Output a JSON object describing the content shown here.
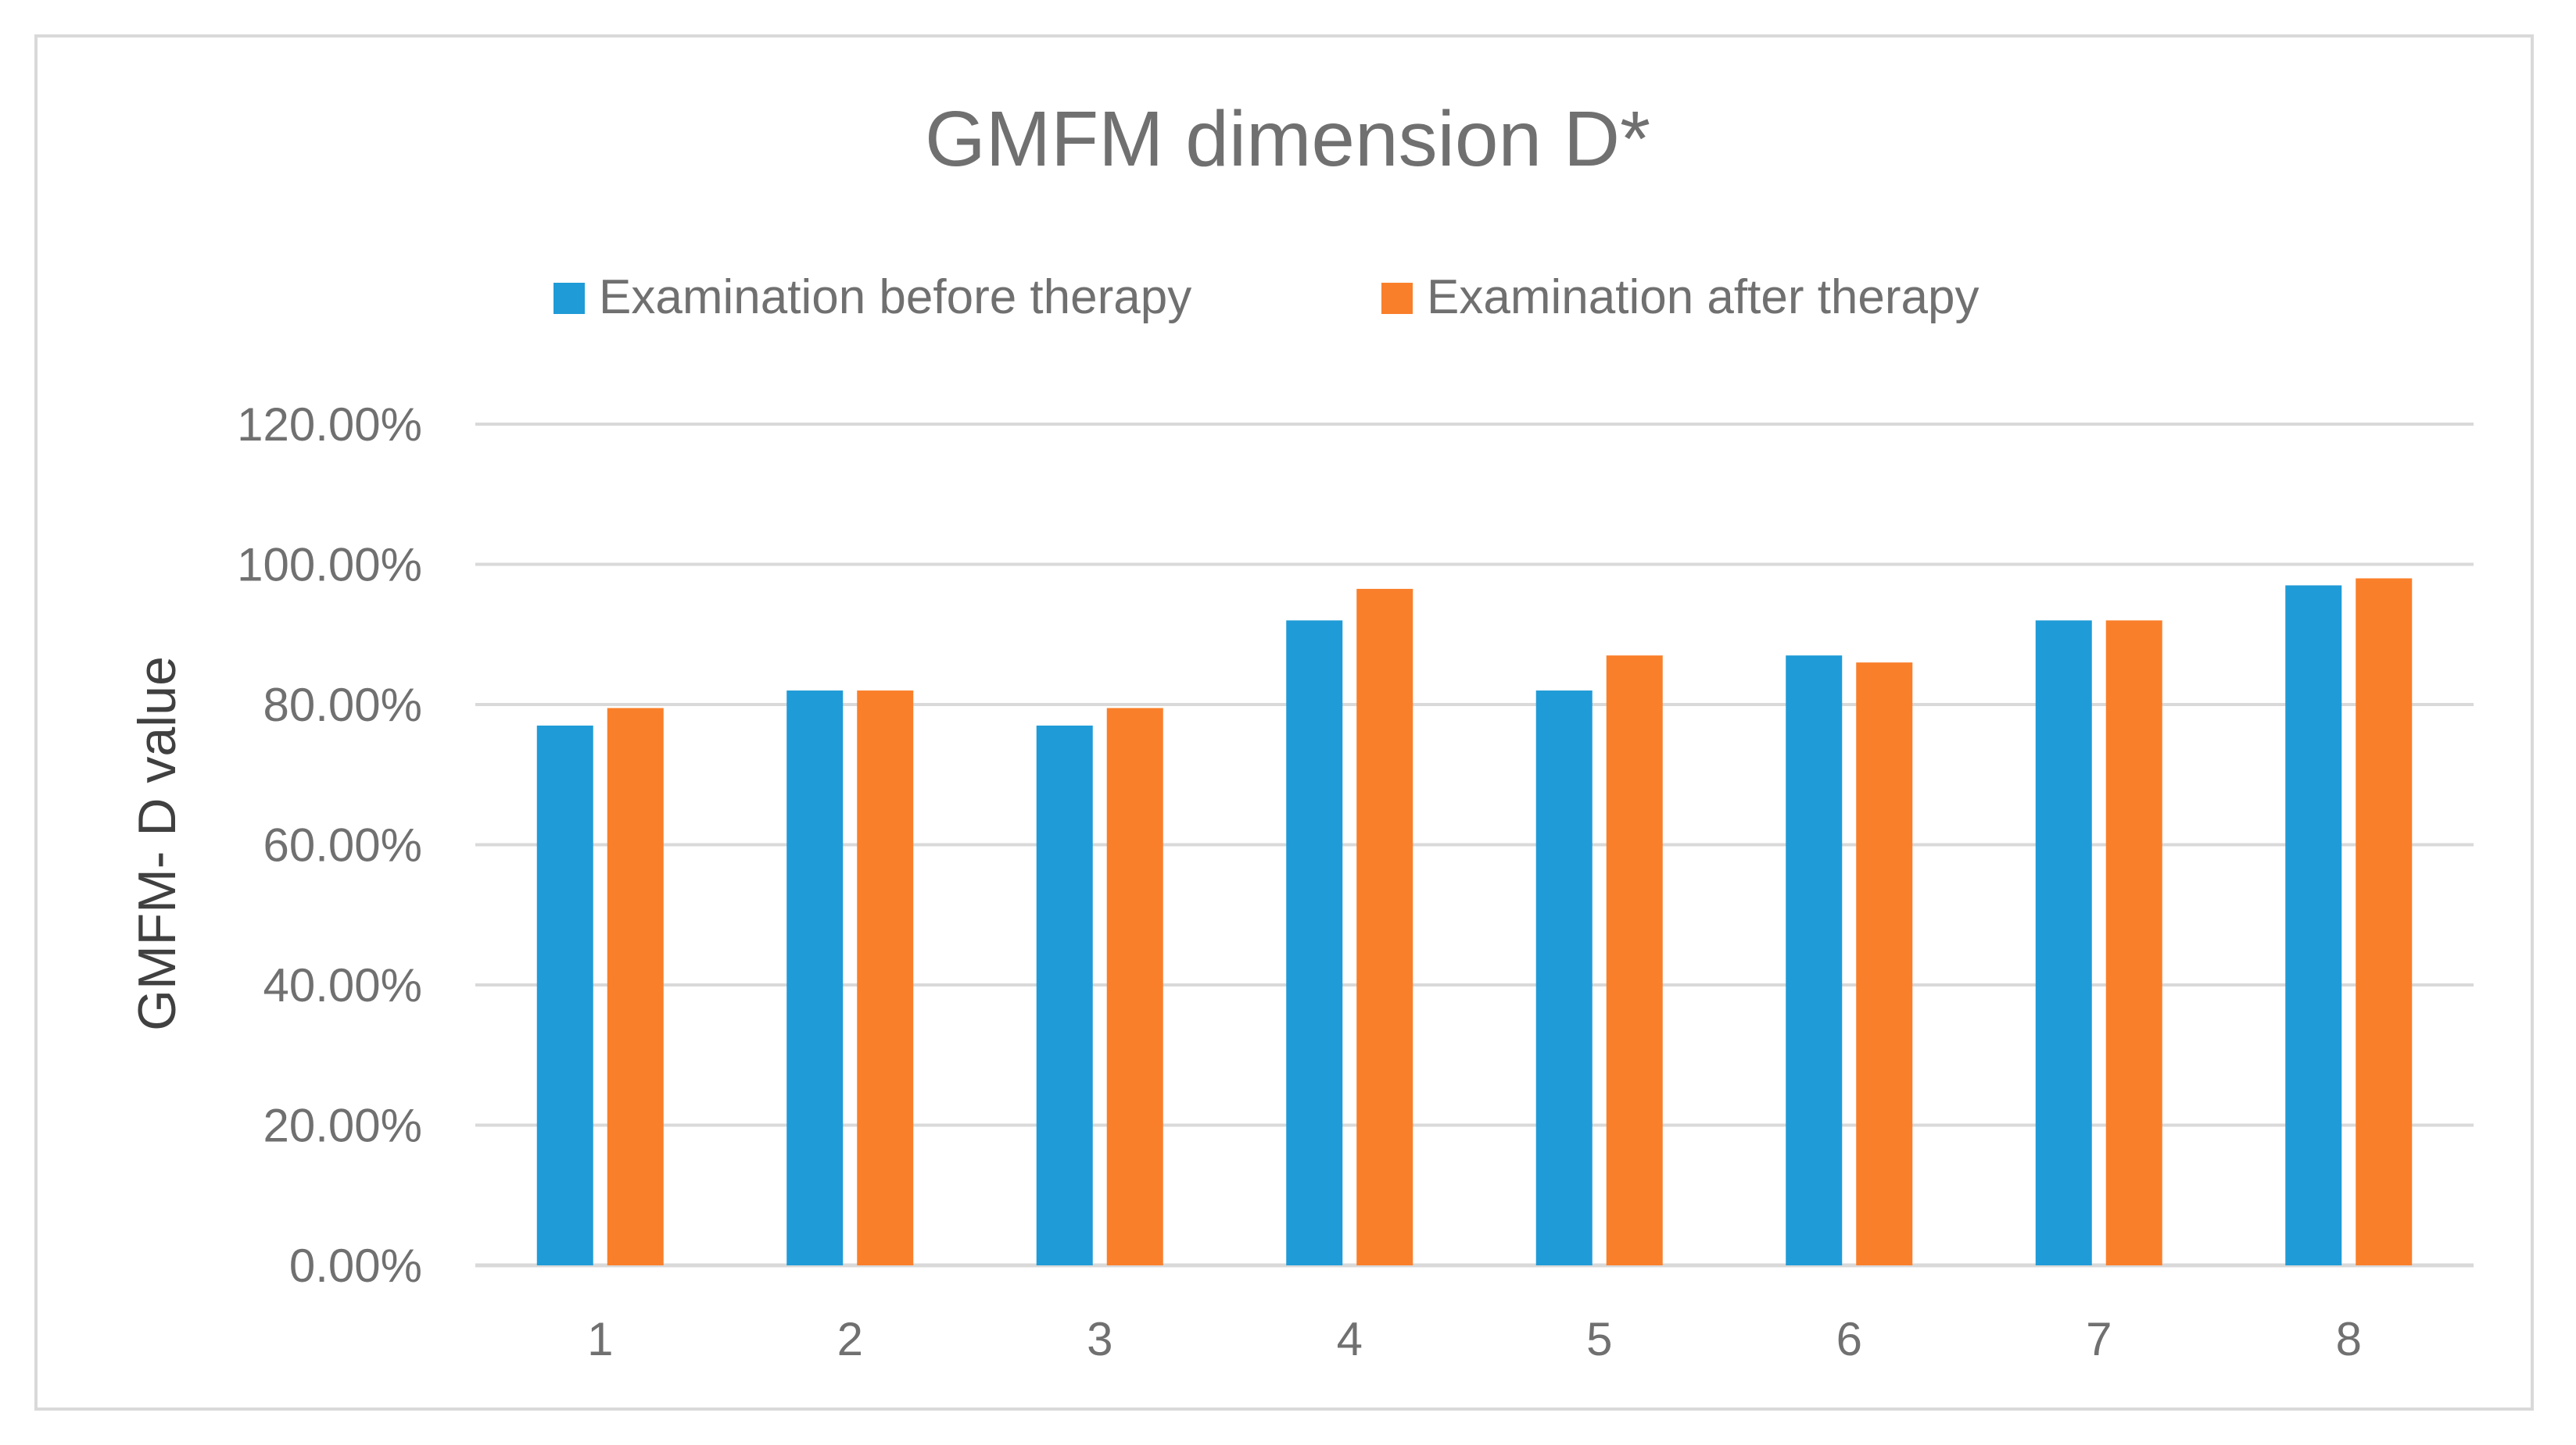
{
  "chart_data": {
    "type": "bar",
    "title": "GMFM dimension D*",
    "xlabel": "",
    "ylabel": "GMFM- D  value",
    "categories": [
      "1",
      "2",
      "3",
      "4",
      "5",
      "6",
      "7",
      "8"
    ],
    "series": [
      {
        "name": "Examination before therapy",
        "color": "#1f9bd7",
        "values": [
          0.77,
          0.82,
          0.77,
          0.92,
          0.82,
          0.87,
          0.92,
          0.97
        ]
      },
      {
        "name": "Examination after therapy",
        "color": "#fa7f2a",
        "values": [
          0.795,
          0.82,
          0.795,
          0.965,
          0.87,
          0.86,
          0.92,
          0.98
        ]
      }
    ],
    "ylim": [
      0,
      1.2
    ],
    "yticks": [
      "0.00%",
      "20.00%",
      "40.00%",
      "60.00%",
      "80.00%",
      "100.00%",
      "120.00%"
    ],
    "grid": true,
    "legend_position": "top"
  }
}
